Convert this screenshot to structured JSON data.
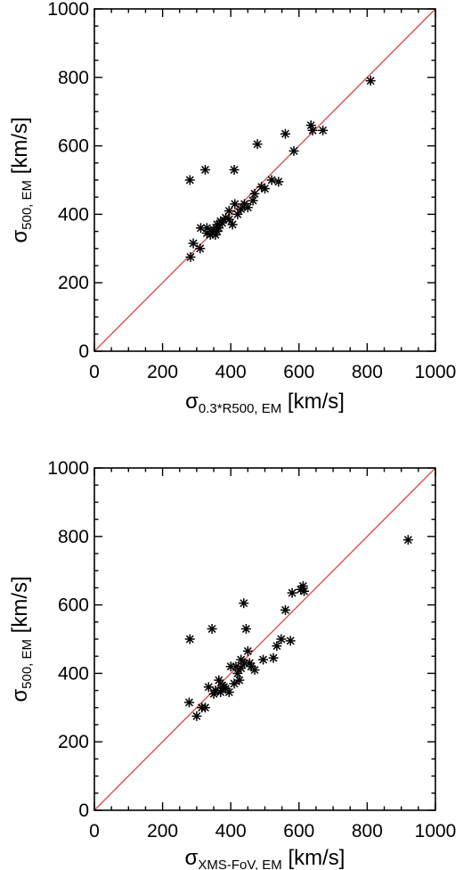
{
  "chart_data": [
    {
      "type": "scatter",
      "xlabel_symbol": "σ",
      "xlabel_sub": "0.3*R500, EM",
      "xlabel_unit": " [km/s]",
      "ylabel_symbol": "σ",
      "ylabel_sub": "500, EM",
      "ylabel_unit": " [km/s]",
      "xlim": [
        0,
        1000
      ],
      "ylim": [
        0,
        1000
      ],
      "xticks": [
        0,
        200,
        400,
        600,
        800,
        1000
      ],
      "yticks": [
        0,
        200,
        400,
        600,
        800,
        1000
      ],
      "xtick_labels": [
        "0",
        "200",
        "400",
        "600",
        "800",
        "1000"
      ],
      "ytick_labels": [
        "0",
        "200",
        "400",
        "600",
        "800",
        "1000"
      ],
      "reference_line": "y = x",
      "reference_color": "#d9473f",
      "marker": "asterisk",
      "grid": false,
      "points": [
        [
          282,
          275
        ],
        [
          280,
          500
        ],
        [
          290,
          315
        ],
        [
          310,
          300
        ],
        [
          312,
          360
        ],
        [
          325,
          530
        ],
        [
          330,
          360
        ],
        [
          340,
          340
        ],
        [
          345,
          350
        ],
        [
          350,
          355
        ],
        [
          355,
          340
        ],
        [
          360,
          370
        ],
        [
          365,
          360
        ],
        [
          370,
          380
        ],
        [
          375,
          375
        ],
        [
          385,
          390
        ],
        [
          395,
          385
        ],
        [
          405,
          370
        ],
        [
          410,
          530
        ],
        [
          412,
          430
        ],
        [
          420,
          400
        ],
        [
          430,
          415
        ],
        [
          440,
          430
        ],
        [
          450,
          420
        ],
        [
          465,
          440
        ],
        [
          470,
          460
        ],
        [
          478,
          605
        ],
        [
          490,
          480
        ],
        [
          500,
          475
        ],
        [
          520,
          500
        ],
        [
          540,
          495
        ],
        [
          560,
          635
        ],
        [
          585,
          585
        ],
        [
          635,
          660
        ],
        [
          640,
          645
        ],
        [
          670,
          645
        ],
        [
          810,
          790
        ],
        [
          330,
          345
        ],
        [
          395,
          410
        ],
        [
          360,
          350
        ]
      ]
    },
    {
      "type": "scatter",
      "xlabel_symbol": "σ",
      "xlabel_sub": "XMS-FoV, EM",
      "xlabel_unit": " [km/s]",
      "ylabel_symbol": "σ",
      "ylabel_sub": "500, EM",
      "ylabel_unit": " [km/s]",
      "xlim": [
        0,
        1000
      ],
      "ylim": [
        0,
        1000
      ],
      "xticks": [
        0,
        200,
        400,
        600,
        800,
        1000
      ],
      "yticks": [
        0,
        200,
        400,
        600,
        800,
        1000
      ],
      "xtick_labels": [
        "0",
        "200",
        "400",
        "600",
        "800",
        "1000"
      ],
      "ytick_labels": [
        "0",
        "200",
        "400",
        "600",
        "800",
        "1000"
      ],
      "reference_line": "y = x",
      "reference_color": "#d9473f",
      "marker": "asterisk",
      "grid": false,
      "points": [
        [
          278,
          315
        ],
        [
          280,
          500
        ],
        [
          300,
          275
        ],
        [
          315,
          300
        ],
        [
          325,
          300
        ],
        [
          335,
          360
        ],
        [
          345,
          530
        ],
        [
          355,
          350
        ],
        [
          365,
          380
        ],
        [
          370,
          345
        ],
        [
          375,
          365
        ],
        [
          385,
          355
        ],
        [
          395,
          345
        ],
        [
          410,
          370
        ],
        [
          415,
          420
        ],
        [
          420,
          400
        ],
        [
          425,
          380
        ],
        [
          430,
          415
        ],
        [
          438,
          605
        ],
        [
          440,
          430
        ],
        [
          445,
          530
        ],
        [
          450,
          465
        ],
        [
          455,
          430
        ],
        [
          470,
          410
        ],
        [
          495,
          440
        ],
        [
          525,
          445
        ],
        [
          535,
          480
        ],
        [
          548,
          500
        ],
        [
          560,
          585
        ],
        [
          575,
          495
        ],
        [
          580,
          635
        ],
        [
          605,
          645
        ],
        [
          612,
          655
        ],
        [
          615,
          640
        ],
        [
          920,
          790
        ],
        [
          400,
          420
        ],
        [
          350,
          340
        ],
        [
          460,
          420
        ],
        [
          430,
          440
        ],
        [
          380,
          360
        ]
      ]
    }
  ]
}
